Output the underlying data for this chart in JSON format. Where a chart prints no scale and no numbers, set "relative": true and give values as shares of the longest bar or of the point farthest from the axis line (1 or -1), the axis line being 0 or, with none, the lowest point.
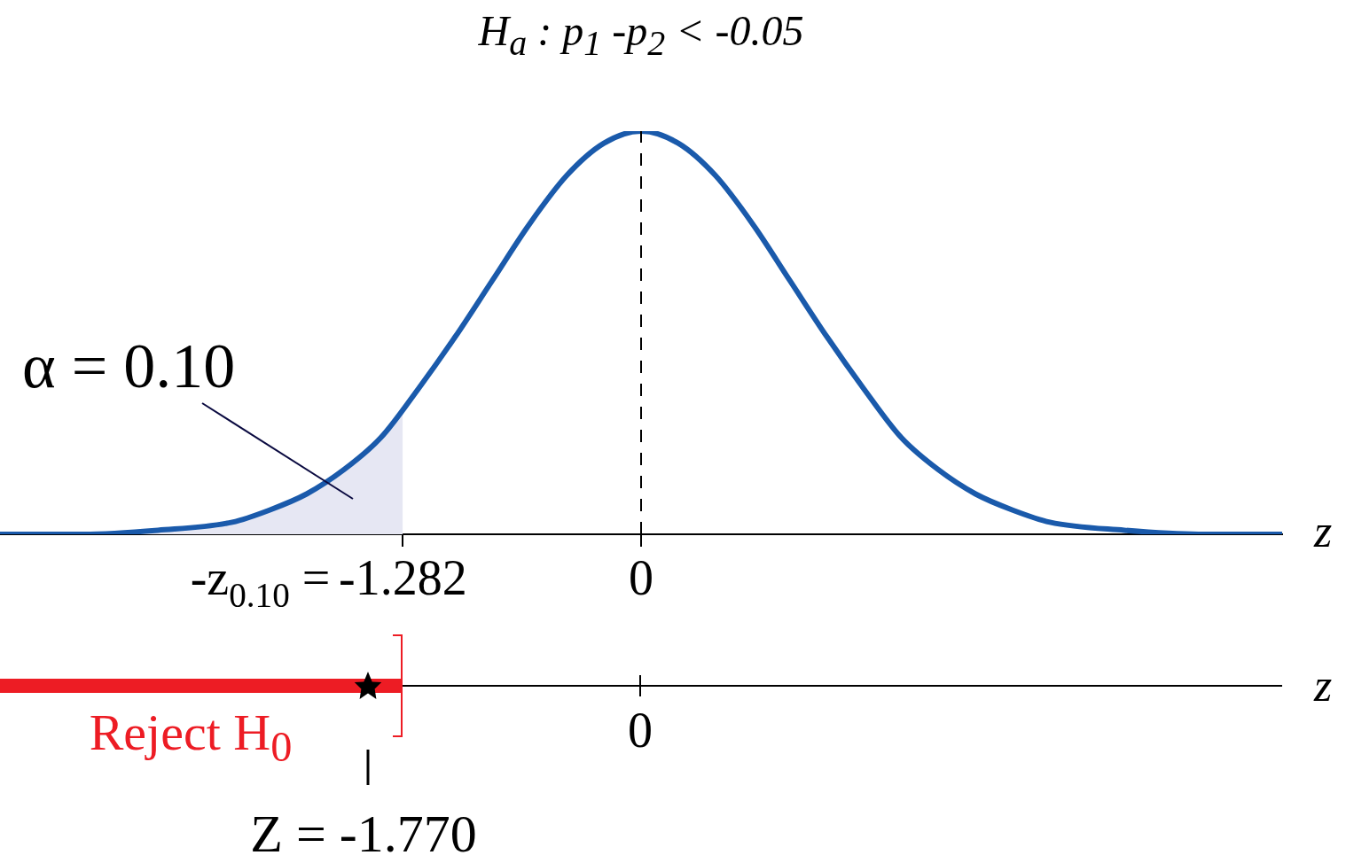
{
  "chart_data": [
    {
      "type": "line",
      "title": "H$_{a}$ : p$_{1}$ -p$_{2}$ < -0.05",
      "relative": true,
      "xlim": [
        -3.45,
        3.45
      ],
      "xticks": [
        {
          "value": -1.282,
          "label": "-1.282"
        },
        0
      ],
      "xlabel": "z",
      "x": [
        -3.45,
        -3,
        -2.6,
        -2.2,
        -2,
        -1.8,
        -1.6,
        -1.4,
        -1.2,
        -1,
        -0.8,
        -0.6,
        -0.4,
        -0.2,
        0,
        0.2,
        0.4,
        0.6,
        0.8,
        1,
        1.2,
        1.4,
        1.6,
        1.8,
        2,
        2.2,
        2.6,
        3,
        3.45
      ],
      "series": [
        {
          "type": "area",
          "color": "#e6e7f3",
          "x": [
            -3.45,
            -3,
            -2.6,
            -2.2,
            -2,
            -1.8,
            -1.6,
            -1.4,
            -1.282
          ],
          "values": [
            0,
            0,
            0.01,
            0.03,
            0.06,
            0.1,
            0.16,
            0.24,
            0.31
          ]
        },
        {
          "type": "line",
          "color": "#1a5aab",
          "values": [
            0,
            0,
            0.01,
            0.03,
            0.06,
            0.1,
            0.16,
            0.24,
            0.36,
            0.49,
            0.63,
            0.77,
            0.89,
            0.97,
            1,
            0.97,
            0.89,
            0.77,
            0.63,
            0.49,
            0.36,
            0.24,
            0.16,
            0.1,
            0.06,
            0.03,
            0.01,
            0,
            0
          ]
        }
      ],
      "ref_lines": [
        {
          "axis": "x",
          "value": 0,
          "color": "#000000",
          "line_style": "dashed"
        }
      ],
      "annotations": [
        "α = 0.10",
        "-z$_{0.10}$ ="
      ]
    },
    {
      "type": "other",
      "xlabel": "z",
      "color": "#ed1c24",
      "annotations": [
        "Reject H$_{0}$",
        "0",
        "Z = -1.770"
      ]
    }
  ]
}
